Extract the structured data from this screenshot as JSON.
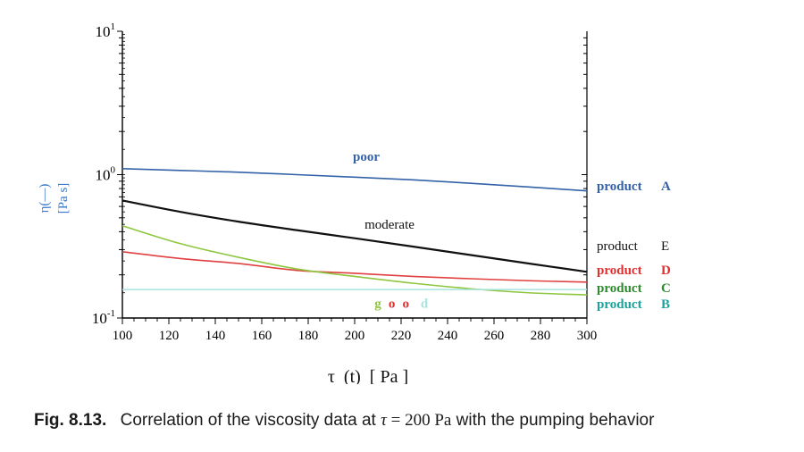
{
  "chart_data": {
    "type": "line",
    "x_scale": "linear",
    "y_scale": "log",
    "xlim": [
      100,
      300
    ],
    "ylim": [
      0.1,
      10
    ],
    "x_ticks": [
      "100",
      "120",
      "140",
      "160",
      "180",
      "200",
      "220",
      "240",
      "260",
      "280",
      "300"
    ],
    "y_ticks": [
      {
        "base": "10",
        "exp": "1",
        "value": 10
      },
      {
        "base": "10",
        "exp": "0",
        "value": 1
      },
      {
        "base": "10",
        "exp": "-1",
        "value": 0.1
      }
    ],
    "xlabel": "τ  (t)  [ Pa ]",
    "ylabel_line1": "η(—)",
    "ylabel_line2": "[Pa s]",
    "ylabel_color": "#3a78c9",
    "series": [
      {
        "name": "product  A",
        "product": "product",
        "letter": "A",
        "color": "#3462a8",
        "label_color": "#3462a8",
        "x": [
          100,
          125,
          150,
          175,
          200,
          225,
          250,
          275,
          300
        ],
        "y": [
          1.1,
          1.07,
          1.04,
          1.0,
          0.96,
          0.92,
          0.87,
          0.82,
          0.77
        ]
      },
      {
        "name": "product  E",
        "product": "product",
        "letter": "E",
        "color": "#111111",
        "label_color": "#111111",
        "x": [
          100,
          125,
          150,
          175,
          200,
          225,
          250,
          275,
          300
        ],
        "y": [
          0.66,
          0.55,
          0.47,
          0.41,
          0.36,
          0.315,
          0.275,
          0.24,
          0.21
        ]
      },
      {
        "name": "product  D",
        "product": "product",
        "letter": "D",
        "color": "#e04040",
        "label_color": "#e03030",
        "x": [
          100,
          125,
          150,
          175,
          200,
          225,
          250,
          275,
          300
        ],
        "y": [
          0.29,
          0.26,
          0.24,
          0.215,
          0.205,
          0.195,
          0.188,
          0.182,
          0.178
        ]
      },
      {
        "name": "product  C",
        "product": "product",
        "letter": "C",
        "color": "#8dc63f",
        "label_color": "#2e8b2e",
        "x": [
          100,
          125,
          150,
          175,
          200,
          225,
          250,
          275,
          300
        ],
        "y": [
          0.44,
          0.33,
          0.265,
          0.22,
          0.195,
          0.175,
          0.16,
          0.15,
          0.145
        ]
      },
      {
        "name": "product  B",
        "product": "product",
        "letter": "B",
        "color": "#a6e3e0",
        "label_color": "#1aa39a",
        "x": [
          100,
          300
        ],
        "y": [
          0.158,
          0.158
        ]
      }
    ],
    "annotations": [
      {
        "text": "poor",
        "color": "#3462a8",
        "bold": true,
        "x": 205,
        "y": 1.25
      },
      {
        "text": "moderate",
        "color": "#111111",
        "bold": false,
        "x": 215,
        "y": 0.42
      },
      {
        "text": "g",
        "color": "#8dc63f",
        "bold": true,
        "x": 210,
        "y": 0.118
      },
      {
        "text": "o",
        "color": "#e03030",
        "bold": true,
        "x": 216,
        "y": 0.118
      },
      {
        "text": "o",
        "color": "#e03030",
        "bold": true,
        "x": 222,
        "y": 0.118
      },
      {
        "text": "d",
        "color": "#a6e3e0",
        "bold": true,
        "x": 230,
        "y": 0.118
      }
    ]
  },
  "caption": {
    "label": "Fig. 8.13.",
    "text_before": "Correlation of the viscosity data at ",
    "tau": "τ",
    "equals": " = 200 ",
    "unit": "Pa",
    "text_after": " with the pumping behavior"
  }
}
